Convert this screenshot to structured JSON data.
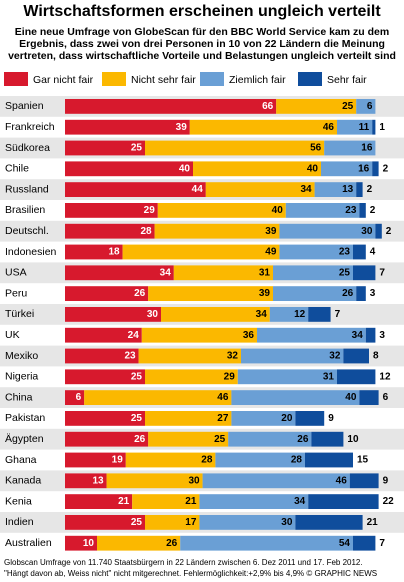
{
  "chart_data": {
    "type": "bar",
    "orientation": "horizontal",
    "stacked": true,
    "title": "Wirtschaftsformen erscheinen ungleich verteilt",
    "subtitle": [
      "Eine neue Umfrage von GlobeScan für den BBC World Service kam zu dem",
      "Ergebnis, dass zwei von drei Personen in 10 von 22 Ländern die Meinung",
      "vertreten, dass wirtschaftliche Vorteile und Belastungen ungleich verteilt sind"
    ],
    "categories": [
      "Spanien",
      "Frankreich",
      "Südkorea",
      "Chile",
      "Russland",
      "Brasilien",
      "Deutschl.",
      "Indonesien",
      "USA",
      "Peru",
      "Türkei",
      "UK",
      "Mexiko",
      "Nigeria",
      "China",
      "Pakistan",
      "Ägypten",
      "Ghana",
      "Kanada",
      "Kenia",
      "Indien",
      "Australien"
    ],
    "series": [
      {
        "name": "Gar nicht fair",
        "color": "#d7192d",
        "values": [
          66,
          39,
          25,
          40,
          44,
          29,
          28,
          18,
          34,
          26,
          30,
          24,
          23,
          25,
          6,
          25,
          26,
          19,
          13,
          21,
          25,
          10
        ]
      },
      {
        "name": "Nicht sehr fair",
        "color": "#fbb800",
        "values": [
          25,
          46,
          56,
          40,
          34,
          40,
          39,
          49,
          31,
          39,
          34,
          36,
          32,
          29,
          46,
          27,
          25,
          28,
          30,
          21,
          17,
          26
        ]
      },
      {
        "name": "Ziemlich fair",
        "color": "#6a9fd5",
        "values": [
          6,
          11,
          16,
          16,
          13,
          23,
          30,
          23,
          25,
          26,
          12,
          34,
          32,
          31,
          40,
          20,
          26,
          28,
          46,
          34,
          30,
          54
        ]
      },
      {
        "name": "Sehr fair",
        "color": "#0f4d9c",
        "values": [
          null,
          1,
          null,
          2,
          2,
          2,
          2,
          4,
          7,
          3,
          7,
          3,
          8,
          12,
          6,
          9,
          10,
          15,
          9,
          22,
          21,
          7
        ]
      }
    ],
    "xlim": [
      0,
      100
    ],
    "footnote": [
      "Globscan Umfrage von 11.740 Staatsbürgern in 22 Ländern zwischen 6. Dez 2011 und 17. Feb 2012.",
      "\"Hängt davon ab, Weiss nicht\" nicht mitgerechnet. Fehlermöglichkeit:+2,9% bis 4,9%  © GRAPHIC NEWS"
    ]
  }
}
